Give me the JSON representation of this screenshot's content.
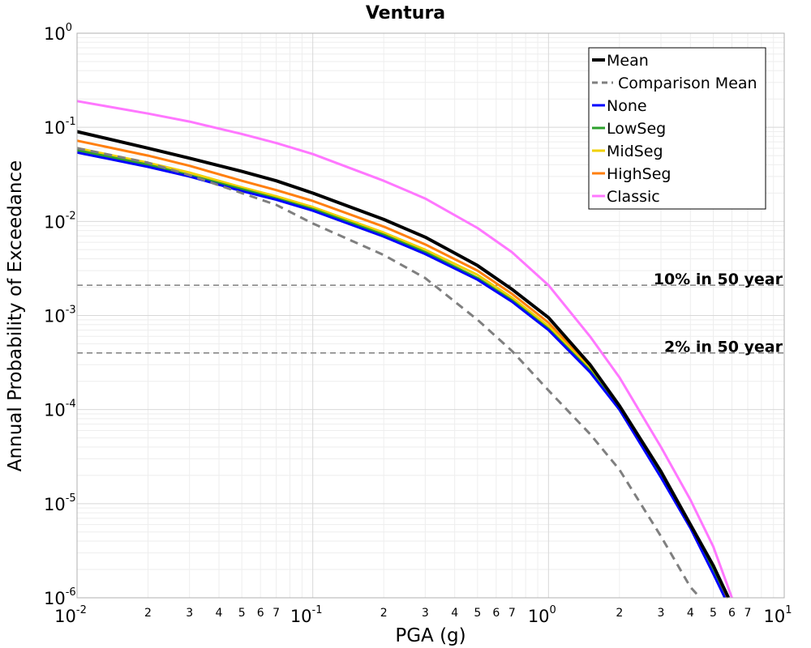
{
  "chart_data": {
    "type": "line",
    "title": "Ventura",
    "xlabel": "PGA (g)",
    "ylabel": "Annual Probability of Exceedance",
    "xscale": "log",
    "yscale": "log",
    "xlim": [
      0.01,
      10
    ],
    "ylim": [
      1e-06,
      1
    ],
    "grid": true,
    "legend_position": "top-right",
    "x_major_ticks": [
      {
        "base": "10",
        "exp": "-2",
        "value": 0.01
      },
      {
        "base": "10",
        "exp": "-1",
        "value": 0.1
      },
      {
        "base": "10",
        "exp": "0",
        "value": 1
      },
      {
        "base": "10",
        "exp": "1",
        "value": 10
      }
    ],
    "y_major_ticks": [
      {
        "base": "10",
        "exp": "0",
        "value": 1
      },
      {
        "base": "10",
        "exp": "-1",
        "value": 0.1
      },
      {
        "base": "10",
        "exp": "-2",
        "value": 0.01
      },
      {
        "base": "10",
        "exp": "-3",
        "value": 0.001
      },
      {
        "base": "10",
        "exp": "-4",
        "value": 0.0001
      },
      {
        "base": "10",
        "exp": "-5",
        "value": 1e-05
      },
      {
        "base": "10",
        "exp": "-6",
        "value": 1e-06
      }
    ],
    "x_minor_tick_labels": [
      "2",
      "3",
      "4",
      "5",
      "6",
      "7"
    ],
    "reference_lines": [
      {
        "label": "10% in 50 year",
        "y": 0.0021,
        "color": "#7f7f7f"
      },
      {
        "label": "2% in 50 year",
        "y": 0.0004,
        "color": "#7f7f7f"
      }
    ],
    "series": [
      {
        "name": "Mean",
        "color": "#000000",
        "style": "solid",
        "x": [
          0.01,
          0.02,
          0.03,
          0.05,
          0.07,
          0.1,
          0.2,
          0.3,
          0.5,
          0.7,
          1.0,
          1.5,
          2.0,
          3.0,
          4.0,
          5.0,
          5.8
        ],
        "y": [
          0.09,
          0.06,
          0.047,
          0.034,
          0.027,
          0.02,
          0.0105,
          0.0068,
          0.0034,
          0.0019,
          0.00095,
          0.0003,
          0.00011,
          2.2e-05,
          6e-06,
          2.2e-06,
          1e-06
        ]
      },
      {
        "name": "Comparison Mean",
        "color": "#7f7f7f",
        "style": "dashed",
        "x": [
          0.01,
          0.02,
          0.03,
          0.05,
          0.07,
          0.1,
          0.2,
          0.3,
          0.5,
          0.7,
          1.0,
          1.5,
          2.0,
          3.0,
          4.0,
          4.4
        ],
        "y": [
          0.06,
          0.042,
          0.031,
          0.02,
          0.015,
          0.0095,
          0.0044,
          0.0025,
          0.0009,
          0.00042,
          0.00016,
          5.5e-05,
          2.3e-05,
          4.5e-06,
          1.3e-06,
          1e-06
        ]
      },
      {
        "name": "None",
        "color": "#0000ff",
        "style": "solid",
        "x": [
          0.01,
          0.02,
          0.03,
          0.05,
          0.07,
          0.1,
          0.2,
          0.3,
          0.5,
          0.7,
          1.0,
          1.5,
          2.0,
          3.0,
          4.0,
          5.0,
          5.6
        ],
        "y": [
          0.054,
          0.038,
          0.03,
          0.021,
          0.017,
          0.013,
          0.0069,
          0.0045,
          0.0024,
          0.0014,
          0.0007,
          0.00025,
          0.0001,
          1.9e-05,
          5.5e-06,
          1.8e-06,
          1e-06
        ]
      },
      {
        "name": "LowSeg",
        "color": "#2ca02c",
        "style": "solid",
        "x": [
          0.01,
          0.02,
          0.03,
          0.05,
          0.07,
          0.1,
          0.2,
          0.3,
          0.5,
          0.7,
          1.0,
          1.5,
          2.0,
          3.0,
          4.0,
          5.0,
          5.6
        ],
        "y": [
          0.057,
          0.04,
          0.031,
          0.022,
          0.0175,
          0.0135,
          0.0072,
          0.0047,
          0.0025,
          0.00145,
          0.00072,
          0.00026,
          0.0001,
          2e-05,
          5.7e-06,
          1.9e-06,
          1e-06
        ]
      },
      {
        "name": "MidSeg",
        "color": "#f0d000",
        "style": "solid",
        "x": [
          0.01,
          0.02,
          0.03,
          0.05,
          0.07,
          0.1,
          0.2,
          0.3,
          0.5,
          0.7,
          1.0,
          1.5,
          2.0,
          3.0,
          4.0,
          5.0,
          5.6
        ],
        "y": [
          0.06,
          0.042,
          0.033,
          0.023,
          0.0185,
          0.0142,
          0.0076,
          0.005,
          0.0027,
          0.00155,
          0.00077,
          0.00027,
          0.000105,
          2e-05,
          5.8e-06,
          1.9e-06,
          1e-06
        ]
      },
      {
        "name": "HighSeg",
        "color": "#ff7f0e",
        "style": "solid",
        "x": [
          0.01,
          0.02,
          0.03,
          0.05,
          0.07,
          0.1,
          0.2,
          0.3,
          0.5,
          0.7,
          1.0,
          1.5,
          2.0,
          3.0,
          4.0,
          5.0,
          5.7
        ],
        "y": [
          0.072,
          0.05,
          0.039,
          0.027,
          0.0215,
          0.0165,
          0.0088,
          0.0057,
          0.003,
          0.0017,
          0.00084,
          0.00028,
          0.000108,
          2.1e-05,
          6e-06,
          2e-06,
          1e-06
        ]
      },
      {
        "name": "Classic",
        "color": "#ff77ff",
        "style": "solid",
        "x": [
          0.01,
          0.02,
          0.03,
          0.05,
          0.07,
          0.1,
          0.2,
          0.3,
          0.5,
          0.7,
          1.0,
          1.5,
          2.0,
          3.0,
          4.0,
          5.0,
          6.0
        ],
        "y": [
          0.19,
          0.14,
          0.115,
          0.085,
          0.068,
          0.052,
          0.027,
          0.0175,
          0.0085,
          0.0047,
          0.0021,
          0.0006,
          0.00022,
          4e-05,
          1.1e-05,
          3.5e-06,
          1e-06
        ]
      }
    ]
  }
}
